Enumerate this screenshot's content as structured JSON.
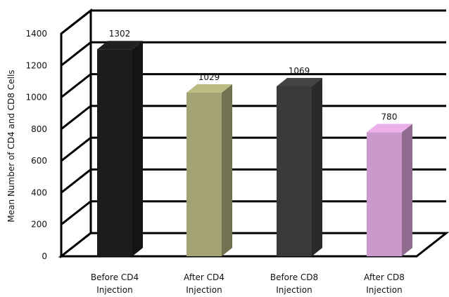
{
  "chart_data": {
    "type": "bar",
    "style": "3d-column",
    "title": "",
    "xlabel": "",
    "ylabel": "Mean Number of CD4 and CD8 Cells",
    "ylim": [
      0,
      1400
    ],
    "yticks": [
      "0",
      "200",
      "400",
      "600",
      "800",
      "1000",
      "1200",
      "1400"
    ],
    "grid": true,
    "categories": [
      [
        "Before CD4",
        "Injection"
      ],
      [
        "After CD4",
        "Injection"
      ],
      [
        "Before CD8",
        "Injection"
      ],
      [
        "After CD8",
        "Injection"
      ]
    ],
    "values": [
      1302,
      1029,
      1069,
      780
    ],
    "data_labels": [
      "1302",
      "1029",
      "1069",
      "780"
    ],
    "colors": [
      "#1c1c1c",
      "#a3a373",
      "#3a3a3a",
      "#cc99cc"
    ]
  }
}
